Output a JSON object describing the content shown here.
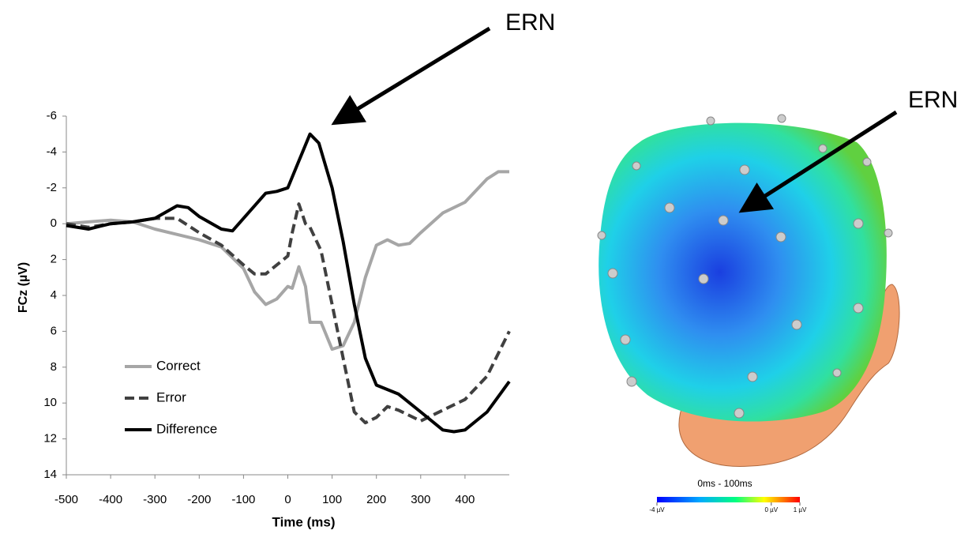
{
  "chart_data": {
    "type": "line",
    "x_label": "Time (ms)",
    "y_label": "FCz (µV)",
    "xlim": [
      -500,
      500
    ],
    "xticks": [
      -500,
      -400,
      -300,
      -200,
      -100,
      0,
      100,
      200,
      300,
      400
    ],
    "ylim": [
      -6,
      14
    ],
    "y_reversed": true,
    "yticks": [
      -6,
      -4,
      -2,
      0,
      2,
      4,
      6,
      8,
      10,
      12,
      14
    ],
    "grid": false,
    "legend": "lower-left",
    "annotation": "ERN",
    "series": [
      {
        "name": "Correct",
        "color": "#a6a6a6",
        "style": "solid",
        "x": [
          -500,
          -450,
          -400,
          -350,
          -300,
          -250,
          -200,
          -150,
          -100,
          -75,
          -50,
          -25,
          0,
          10,
          25,
          40,
          50,
          75,
          100,
          125,
          150,
          175,
          200,
          225,
          250,
          275,
          300,
          350,
          400,
          450,
          475,
          500
        ],
        "values": [
          0,
          -0.1,
          -0.2,
          -0.1,
          0.3,
          0.6,
          0.9,
          1.3,
          2.5,
          3.8,
          4.5,
          4.2,
          3.5,
          3.6,
          2.4,
          3.5,
          5.5,
          5.5,
          7.0,
          6.8,
          5.5,
          3.0,
          1.2,
          0.9,
          1.2,
          1.1,
          0.5,
          -0.6,
          -1.2,
          -2.5,
          -2.9,
          -2.9
        ]
      },
      {
        "name": "Error",
        "color": "#404040",
        "style": "dashed",
        "x": [
          -500,
          -450,
          -400,
          -350,
          -300,
          -250,
          -200,
          -150,
          -100,
          -75,
          -50,
          -25,
          0,
          10,
          25,
          40,
          50,
          75,
          100,
          125,
          150,
          175,
          200,
          225,
          250,
          300,
          350,
          400,
          450,
          500
        ],
        "values": [
          0,
          0.2,
          0,
          -0.1,
          -0.3,
          -0.3,
          0.5,
          1.2,
          2.3,
          2.8,
          2.8,
          2.3,
          1.8,
          0.5,
          -1.1,
          0,
          0.2,
          1.5,
          4.5,
          7.5,
          10.5,
          11.1,
          10.8,
          10.2,
          10.4,
          11.0,
          10.4,
          9.8,
          8.5,
          6
        ]
      },
      {
        "name": "Difference",
        "color": "#000000",
        "style": "solid",
        "x": [
          -500,
          -450,
          -400,
          -350,
          -300,
          -250,
          -225,
          -200,
          -150,
          -125,
          -100,
          -50,
          -25,
          0,
          25,
          50,
          70,
          100,
          125,
          150,
          175,
          200,
          250,
          300,
          350,
          375,
          400,
          450,
          500
        ],
        "values": [
          0.1,
          0.3,
          0,
          -0.1,
          -0.3,
          -1.0,
          -0.9,
          -0.4,
          0.3,
          0.4,
          -0.3,
          -1.7,
          -1.8,
          -2.0,
          -3.5,
          -5.0,
          -4.5,
          -2.0,
          1.0,
          4.5,
          7.5,
          9.0,
          9.5,
          10.5,
          11.5,
          11.6,
          11.5,
          10.5,
          8.8
        ]
      }
    ]
  },
  "topomap": {
    "annotation": "ERN",
    "title": "0ms - 100ms",
    "colorbar": {
      "range": [
        -4,
        1
      ],
      "ticks": [
        {
          "value": -4,
          "label": "-4 µV"
        },
        {
          "value": 0,
          "label": "0 µV"
        },
        {
          "value": 1,
          "label": "1 µV"
        }
      ]
    }
  }
}
